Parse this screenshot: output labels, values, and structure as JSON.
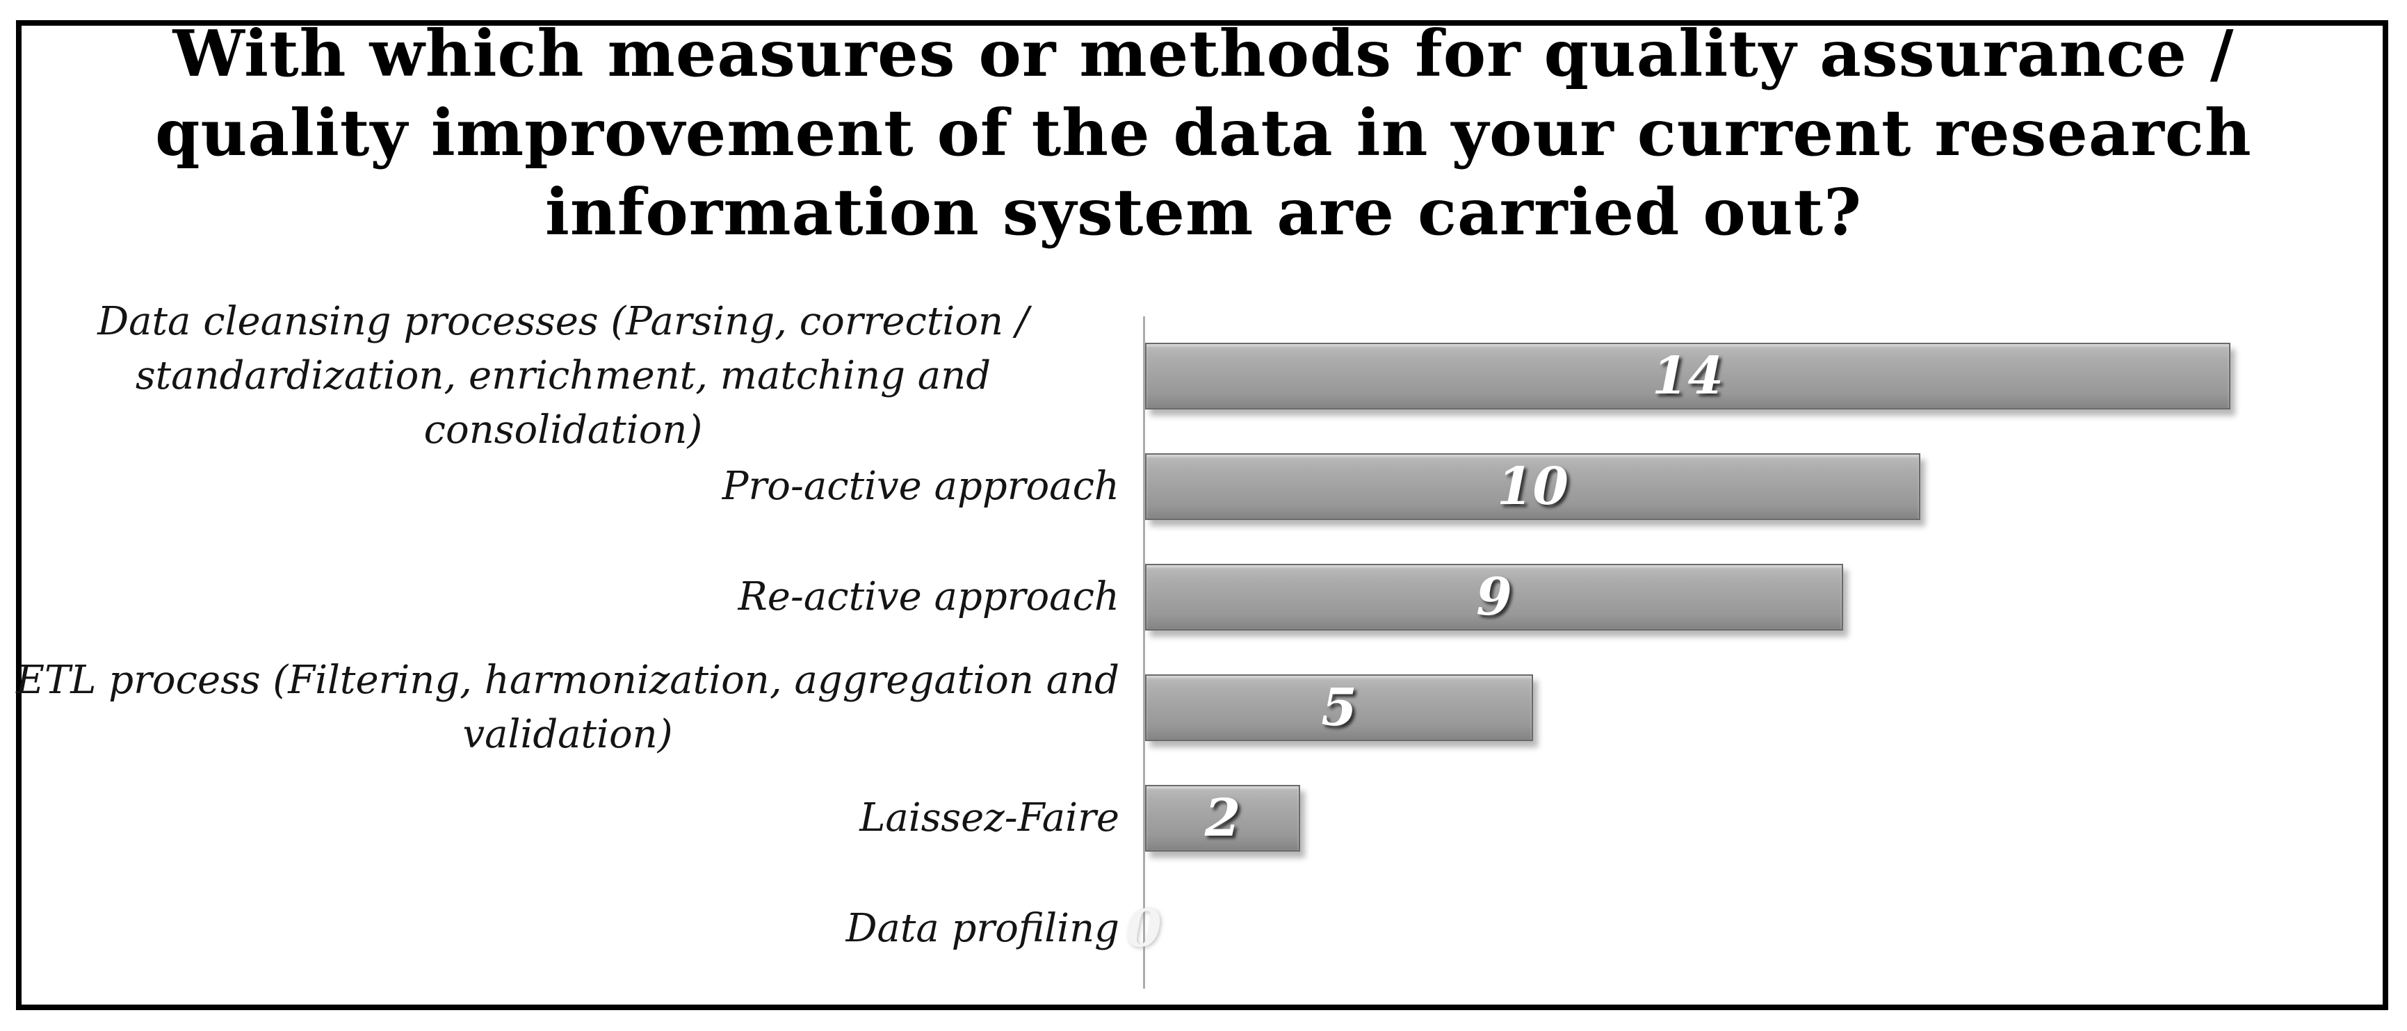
{
  "page": {
    "background_color": "#ffffff",
    "frame_border_color": "#000000"
  },
  "chart_data": {
    "type": "bar",
    "orientation": "horizontal",
    "title": "With which measures or methods for quality assurance /\nquality improvement of the data in your current research\ninformation system are carried out?",
    "categories": [
      "Data cleansing processes (Parsing, correction /\nstandardization, enrichment, matching and consolidation)",
      "Pro-active approach",
      "Re-active approach",
      "ETL process (Filtering, harmonization, aggregation and\nvalidation)",
      "Laissez-Faire",
      "Data profiling"
    ],
    "values": [
      14,
      10,
      9,
      5,
      2,
      0
    ],
    "value_labels": [
      "14",
      "10",
      "9",
      "5",
      "2",
      "0"
    ],
    "xlabel": "",
    "ylabel": "",
    "xlim": [
      0,
      15
    ],
    "grid": false,
    "legend": null,
    "bar_color": "#a2a2a2",
    "bar_border_color": "#6a6a6a",
    "value_label_color": "#ffffff",
    "zero_value_label_color": "#f4f4f4",
    "axis_line_color": "#ababab",
    "title_color": "#000000",
    "category_label_color": "#141414"
  }
}
